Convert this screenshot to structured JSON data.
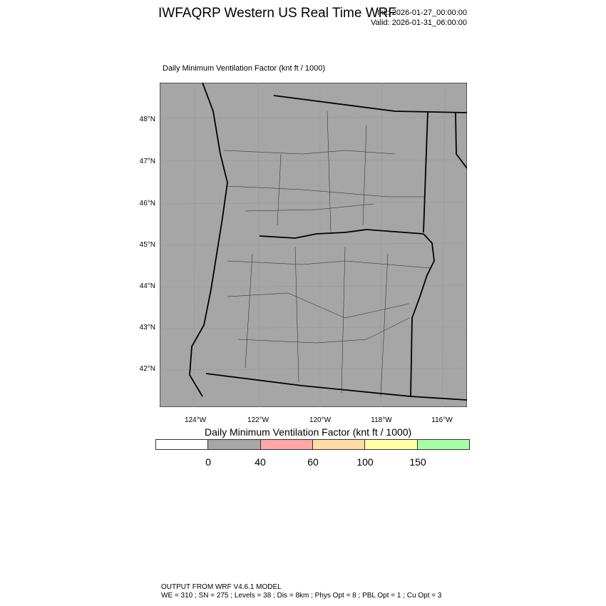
{
  "header": {
    "title": "IWFAQRP Western US Real Time WRF",
    "init": "Init: 2026-01-27_00:00:00",
    "valid": "Valid: 2026-01-31_06:00:00"
  },
  "plot": {
    "subtitle": "Daily Minimum Ventilation Factor   (knt ft / 1000)",
    "fill_color": "#a6a6a6"
  },
  "lat_labels": [
    "48°N",
    "47°N",
    "46°N",
    "45°N",
    "44°N",
    "43°N",
    "42°N"
  ],
  "lon_labels": [
    "124°W",
    "122°W",
    "120°W",
    "118°W",
    "116°W"
  ],
  "colorbar": {
    "title": "Daily Minimum Ventilation Factor  (knt ft / 1000)",
    "colors": [
      "#ffffff",
      "#a6a6a6",
      "#ffa6a6",
      "#ffdca6",
      "#ffffa6",
      "#a6ffa6"
    ],
    "labels": [
      "0",
      "40",
      "60",
      "100",
      "150"
    ]
  },
  "footer": {
    "line1": "OUTPUT FROM WRF V4.6.1 MODEL",
    "line2": "WE = 310 ; SN = 275 ; Levels = 38 ; Dis = 8km ; Phys Opt = 8 ; PBL Opt = 1 ; Cu Opt = 3"
  }
}
